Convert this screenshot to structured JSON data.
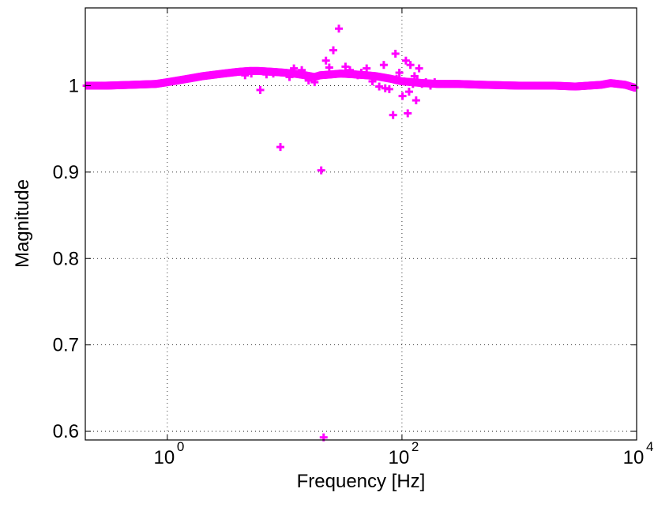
{
  "chart_data": {
    "type": "scatter",
    "title": "",
    "xlabel": "Frequency [Hz]",
    "ylabel": "Magnitude",
    "xscale": "log",
    "xlim": [
      0.2,
      10000
    ],
    "ylim": [
      0.59,
      1.09
    ],
    "grid": true,
    "legend": "none",
    "marker": "+",
    "color": "#ff00ff",
    "x_ticks": [
      {
        "value": 1,
        "base": "10",
        "exp": "0"
      },
      {
        "value": 100,
        "base": "10",
        "exp": "2"
      },
      {
        "value": 10000,
        "base": "10",
        "exp": "4"
      }
    ],
    "y_ticks": [
      {
        "value": 0.6,
        "label": "0.6"
      },
      {
        "value": 0.7,
        "label": "0.7"
      },
      {
        "value": 0.8,
        "label": "0.8"
      },
      {
        "value": 0.9,
        "label": "0.9"
      },
      {
        "value": 1.0,
        "label": "1"
      }
    ],
    "baseline": [
      [
        0.2,
        1.0
      ],
      [
        0.3,
        1.0
      ],
      [
        0.5,
        1.001
      ],
      [
        0.8,
        1.002
      ],
      [
        1.0,
        1.004
      ],
      [
        1.5,
        1.008
      ],
      [
        2.0,
        1.011
      ],
      [
        3.0,
        1.014
      ],
      [
        4.0,
        1.016
      ],
      [
        5.0,
        1.017
      ],
      [
        6.0,
        1.017
      ],
      [
        8.0,
        1.016
      ],
      [
        10.0,
        1.015
      ],
      [
        12.0,
        1.014
      ],
      [
        15.0,
        1.012
      ],
      [
        18.0,
        1.01
      ],
      [
        20.0,
        1.012
      ],
      [
        25.0,
        1.013
      ],
      [
        30.0,
        1.014
      ],
      [
        40.0,
        1.013
      ],
      [
        50.0,
        1.012
      ],
      [
        60.0,
        1.011
      ],
      [
        80.0,
        1.008
      ],
      [
        100.0,
        1.005
      ],
      [
        150.0,
        1.003
      ],
      [
        200.0,
        1.002
      ],
      [
        300.0,
        1.002
      ],
      [
        500.0,
        1.001
      ],
      [
        1000.0,
        1.0
      ],
      [
        2000.0,
        1.0
      ],
      [
        3000.0,
        0.999
      ],
      [
        5000.0,
        1.001
      ],
      [
        6000.0,
        1.003
      ],
      [
        8000.0,
        1.001
      ],
      [
        10000.0,
        0.997
      ]
    ],
    "points": [
      [
        6.2,
        0.995
      ],
      [
        9.2,
        0.929
      ],
      [
        20.5,
        0.902
      ],
      [
        21.5,
        0.593
      ],
      [
        26,
        1.041
      ],
      [
        29,
        1.066
      ],
      [
        22.5,
        1.029
      ],
      [
        36,
        1.018
      ],
      [
        42,
        1.012
      ],
      [
        56,
        1.005
      ],
      [
        70,
        1.024
      ],
      [
        78,
        0.996
      ],
      [
        84,
        0.966
      ],
      [
        88,
        1.037
      ],
      [
        95,
        1.015
      ],
      [
        101,
        0.988
      ],
      [
        108,
        1.029
      ],
      [
        112,
        0.968
      ],
      [
        118,
        1.024
      ],
      [
        124,
        1.002
      ],
      [
        132,
        0.983
      ],
      [
        140,
        1.02
      ],
      [
        72,
        0.997
      ],
      [
        64,
        0.999
      ],
      [
        50,
        1.02
      ],
      [
        33,
        1.022
      ],
      [
        24,
        1.021
      ],
      [
        18,
        1.004
      ],
      [
        16,
        1.006
      ],
      [
        14,
        1.018
      ],
      [
        12,
        1.02
      ],
      [
        11,
        1.01
      ],
      [
        8,
        1.014
      ],
      [
        7,
        1.013
      ],
      [
        5.2,
        1.014
      ],
      [
        4.6,
        1.012
      ],
      [
        45,
        1.015
      ],
      [
        90,
        1.008
      ],
      [
        104,
        1.005
      ],
      [
        115,
        0.993
      ],
      [
        128,
        1.011
      ],
      [
        135,
        1.006
      ],
      [
        148,
        1.002
      ],
      [
        160,
        1.004
      ],
      [
        175,
        1.0
      ],
      [
        190,
        1.004
      ]
    ]
  }
}
